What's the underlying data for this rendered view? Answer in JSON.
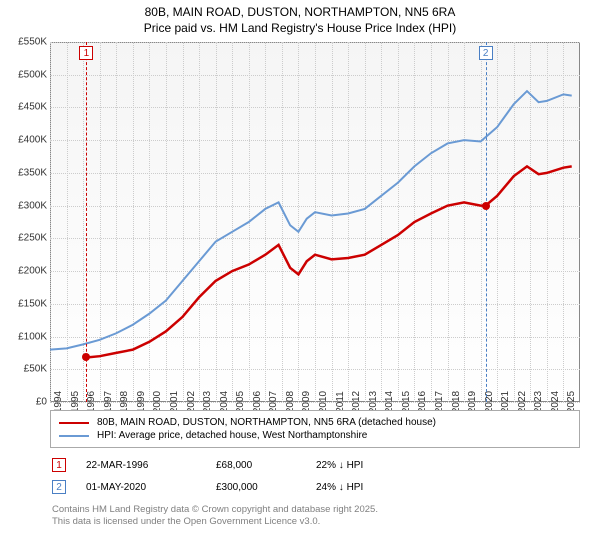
{
  "title_line1": "80B, MAIN ROAD, DUSTON, NORTHAMPTON, NN5 6RA",
  "title_line2": "Price paid vs. HM Land Registry's House Price Index (HPI)",
  "chart": {
    "type": "line",
    "background_gradient": [
      "#f5f5f5",
      "#ffffff"
    ],
    "border_color": "#888888",
    "grid_color": "#cccccc",
    "x_range": [
      1994,
      2026
    ],
    "y_range": [
      0,
      550
    ],
    "y_ticks": [
      0,
      50,
      100,
      150,
      200,
      250,
      300,
      350,
      400,
      450,
      500,
      550
    ],
    "y_tick_labels": [
      "£0",
      "£50K",
      "£100K",
      "£150K",
      "£200K",
      "£250K",
      "£300K",
      "£350K",
      "£400K",
      "£450K",
      "£500K",
      "£550K"
    ],
    "x_ticks": [
      1994,
      1995,
      1996,
      1997,
      1998,
      1999,
      2000,
      2001,
      2002,
      2003,
      2004,
      2005,
      2006,
      2007,
      2008,
      2009,
      2010,
      2011,
      2012,
      2013,
      2014,
      2015,
      2016,
      2017,
      2018,
      2019,
      2020,
      2021,
      2022,
      2023,
      2024,
      2025
    ],
    "series": [
      {
        "label": "80B, MAIN ROAD, DUSTON, NORTHAMPTON, NN5 6RA (detached house)",
        "color": "#cc0000",
        "line_width": 2.5,
        "data": [
          [
            1996.2,
            68
          ],
          [
            1997,
            70
          ],
          [
            1998,
            75
          ],
          [
            1999,
            80
          ],
          [
            2000,
            92
          ],
          [
            2001,
            108
          ],
          [
            2002,
            130
          ],
          [
            2003,
            160
          ],
          [
            2004,
            185
          ],
          [
            2005,
            200
          ],
          [
            2006,
            210
          ],
          [
            2007,
            225
          ],
          [
            2007.8,
            240
          ],
          [
            2008.5,
            205
          ],
          [
            2009,
            195
          ],
          [
            2009.5,
            215
          ],
          [
            2010,
            225
          ],
          [
            2011,
            218
          ],
          [
            2012,
            220
          ],
          [
            2013,
            225
          ],
          [
            2014,
            240
          ],
          [
            2015,
            255
          ],
          [
            2016,
            275
          ],
          [
            2017,
            288
          ],
          [
            2018,
            300
          ],
          [
            2019,
            305
          ],
          [
            2020,
            300
          ],
          [
            2020.3,
            300
          ],
          [
            2021,
            315
          ],
          [
            2022,
            345
          ],
          [
            2022.8,
            360
          ],
          [
            2023.5,
            348
          ],
          [
            2024,
            350
          ],
          [
            2025,
            358
          ],
          [
            2025.5,
            360
          ]
        ]
      },
      {
        "label": "HPI: Average price, detached house, West Northamptonshire",
        "color": "#6a9ad4",
        "line_width": 2,
        "data": [
          [
            1994,
            80
          ],
          [
            1995,
            82
          ],
          [
            1996,
            88
          ],
          [
            1997,
            95
          ],
          [
            1998,
            105
          ],
          [
            1999,
            118
          ],
          [
            2000,
            135
          ],
          [
            2001,
            155
          ],
          [
            2002,
            185
          ],
          [
            2003,
            215
          ],
          [
            2004,
            245
          ],
          [
            2005,
            260
          ],
          [
            2006,
            275
          ],
          [
            2007,
            295
          ],
          [
            2007.8,
            305
          ],
          [
            2008.5,
            270
          ],
          [
            2009,
            260
          ],
          [
            2009.5,
            280
          ],
          [
            2010,
            290
          ],
          [
            2011,
            285
          ],
          [
            2012,
            288
          ],
          [
            2013,
            295
          ],
          [
            2014,
            315
          ],
          [
            2015,
            335
          ],
          [
            2016,
            360
          ],
          [
            2017,
            380
          ],
          [
            2018,
            395
          ],
          [
            2019,
            400
          ],
          [
            2020,
            398
          ],
          [
            2021,
            420
          ],
          [
            2022,
            455
          ],
          [
            2022.8,
            475
          ],
          [
            2023.5,
            458
          ],
          [
            2024,
            460
          ],
          [
            2025,
            470
          ],
          [
            2025.5,
            468
          ]
        ]
      }
    ],
    "markers": [
      {
        "n": "1",
        "x": 1996.2,
        "y": 68,
        "line_color": "#cc0000"
      },
      {
        "n": "2",
        "x": 2020.3,
        "y": 300,
        "line_color": "#4a7fc4"
      }
    ]
  },
  "legend_items": [
    "80B, MAIN ROAD, DUSTON, NORTHAMPTON, NN5 6RA (detached house)",
    "HPI: Average price, detached house, West Northamptonshire"
  ],
  "sales": [
    {
      "n": "1",
      "date": "22-MAR-1996",
      "price": "£68,000",
      "diff": "22% ↓ HPI"
    },
    {
      "n": "2",
      "date": "01-MAY-2020",
      "price": "£300,000",
      "diff": "24% ↓ HPI"
    }
  ],
  "credits_line1": "Contains HM Land Registry data © Crown copyright and database right 2025.",
  "credits_line2": "This data is licensed under the Open Government Licence v3.0."
}
